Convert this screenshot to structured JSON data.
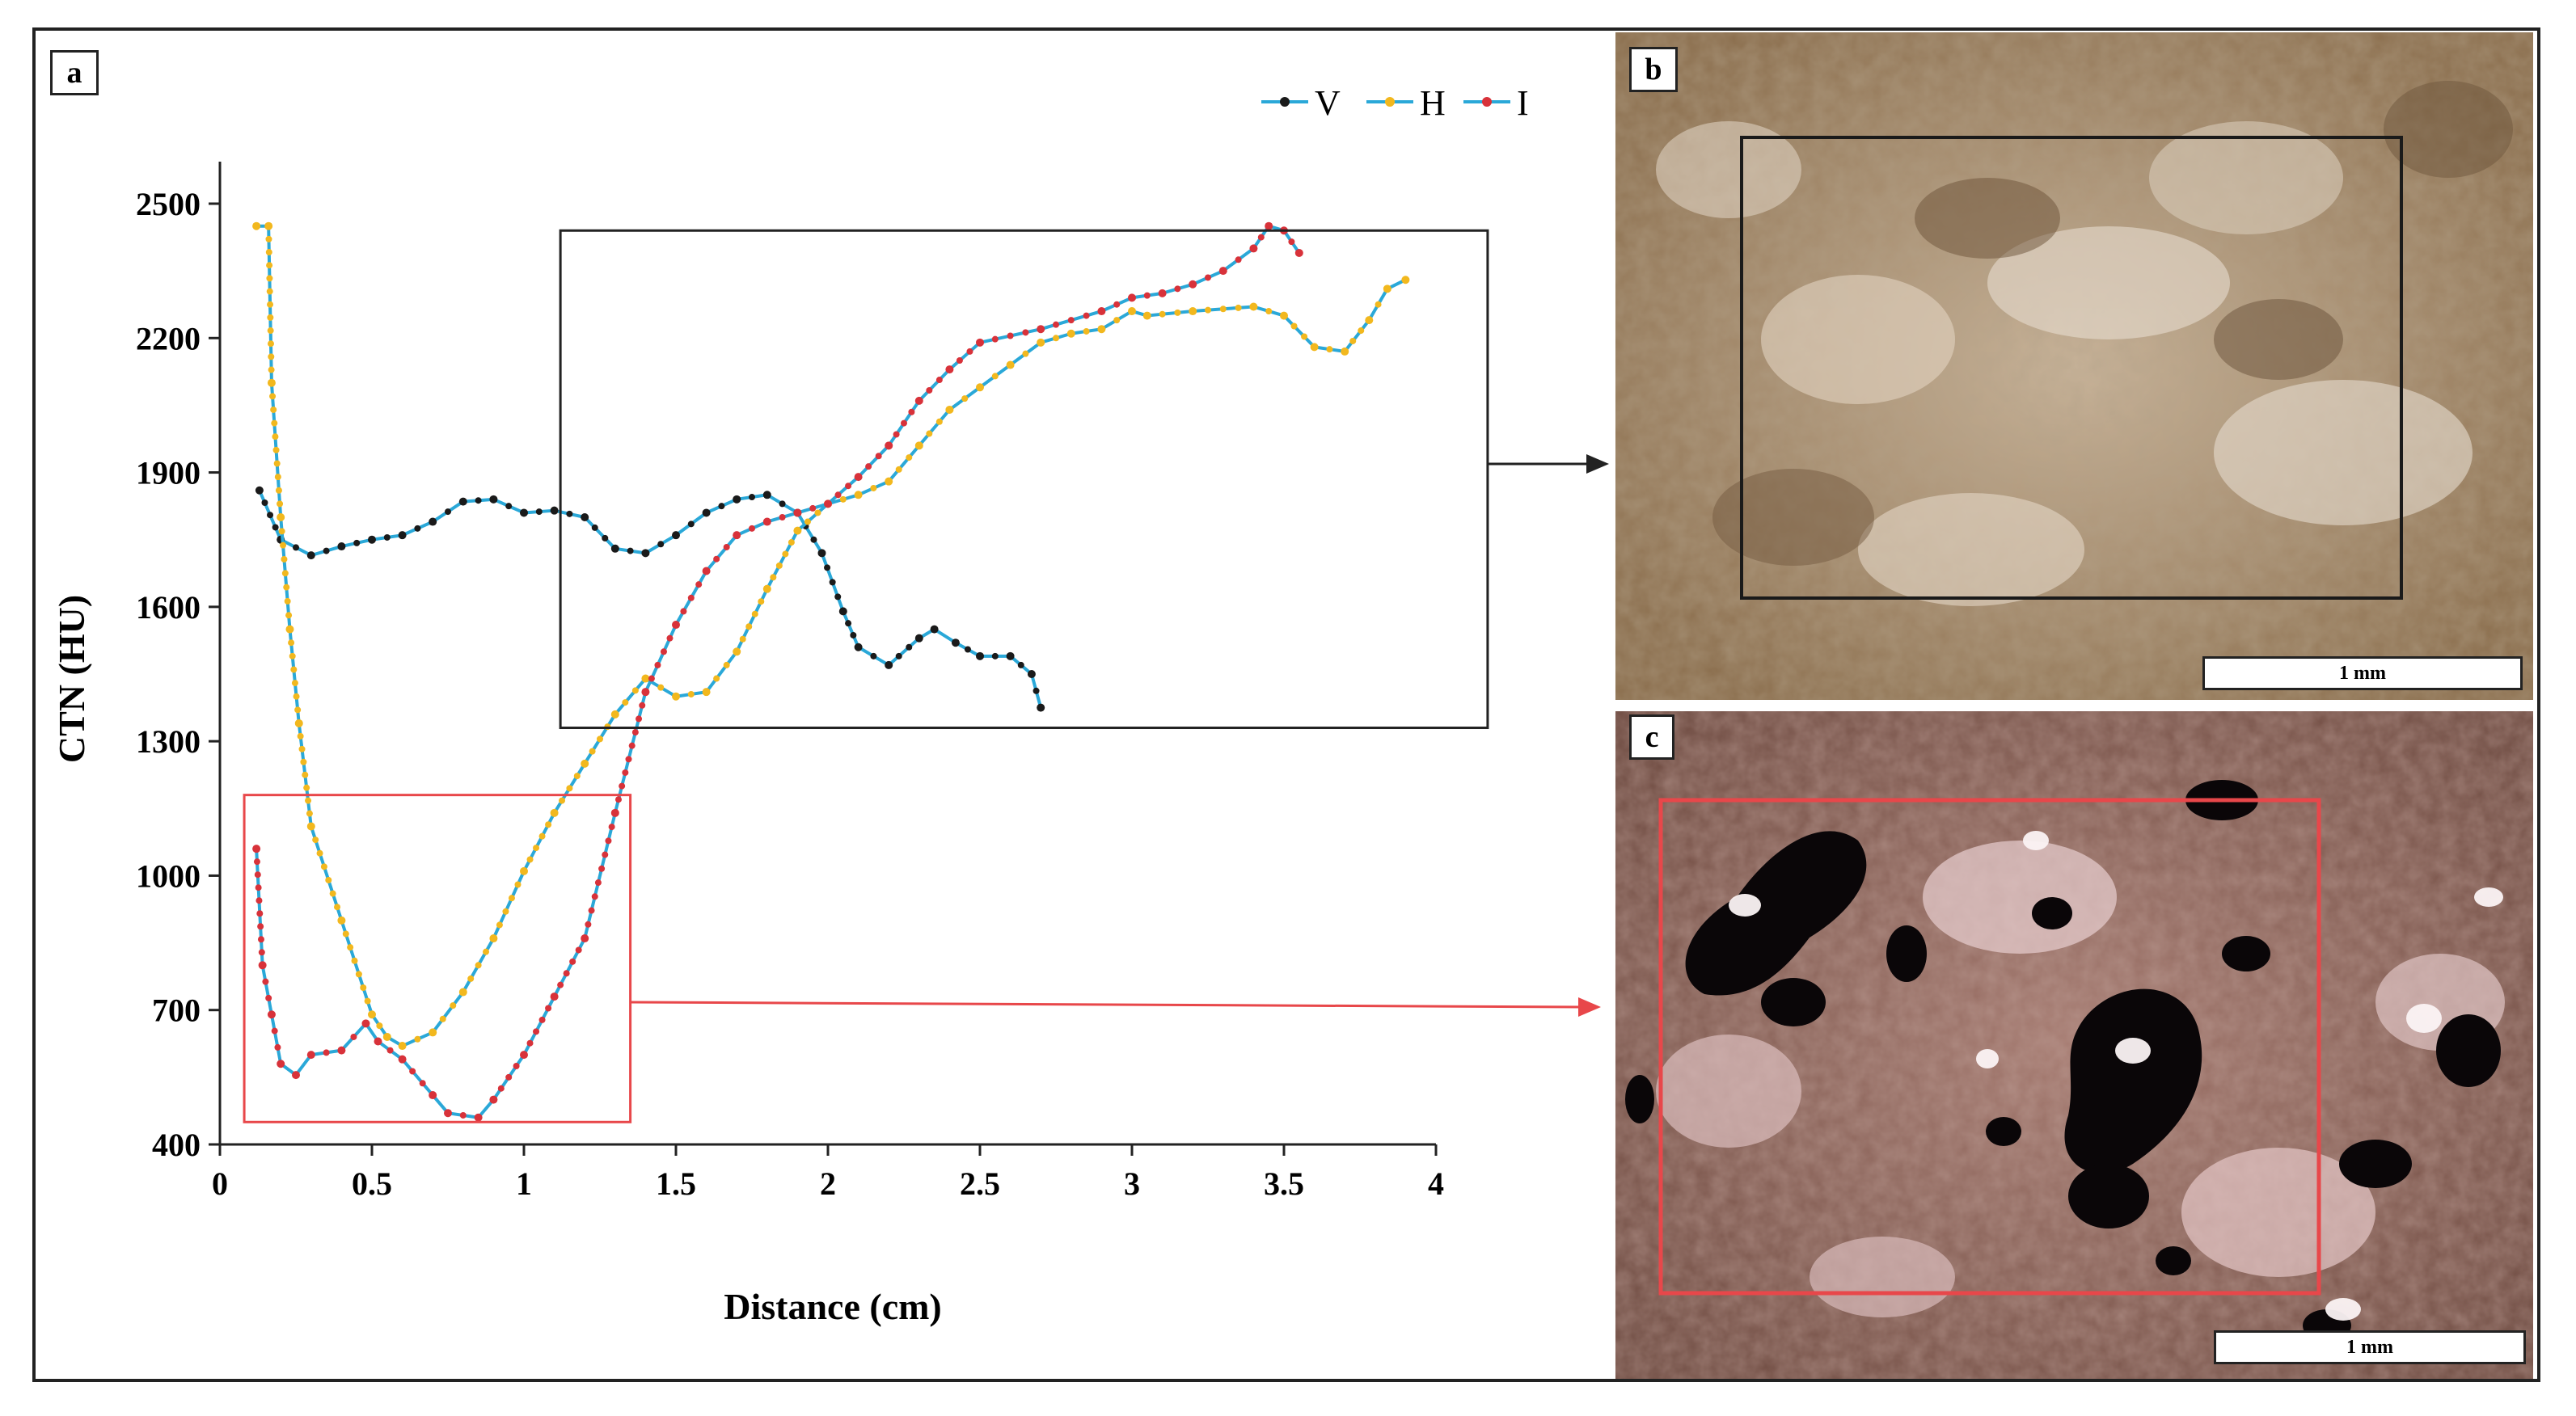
{
  "panels": {
    "a": "a",
    "b": "b",
    "c": "c"
  },
  "scalebars": {
    "b": "1 mm",
    "c": "1 mm"
  },
  "colors": {
    "line": "#2aa8d8",
    "V_marker": "#1a1a1a",
    "H_marker": "#f2b81e",
    "I_marker": "#d8323a",
    "inset_black": "#222222",
    "inset_red": "#e8474a"
  },
  "chart_data": {
    "type": "line",
    "title": "",
    "xlabel": "Distance (cm)",
    "ylabel": "CTN (HU)",
    "xlim": [
      0,
      4
    ],
    "ylim": [
      400,
      2600
    ],
    "xticks": [
      0,
      0.5,
      1,
      1.5,
      2,
      2.5,
      3,
      3.5,
      4
    ],
    "xtick_labels": [
      "0",
      "0.5",
      "1",
      "1.5",
      "2",
      "2.5",
      "3",
      "3.5",
      "4"
    ],
    "yticks": [
      400,
      700,
      1000,
      1300,
      1600,
      1900,
      2200,
      2500
    ],
    "ytick_labels": [
      "400",
      "700",
      "1000",
      "1300",
      "1600",
      "1900",
      "2200",
      "2500"
    ],
    "legend": {
      "position": "top-right",
      "entries": [
        "V",
        "H",
        "I"
      ]
    },
    "insets": [
      {
        "name": "black-box",
        "x_range": [
          1.12,
          4.17
        ],
        "y_range": [
          1330,
          2440
        ],
        "points_to": "b"
      },
      {
        "name": "red-box",
        "x_range": [
          0.08,
          1.35
        ],
        "y_range": [
          450,
          1180
        ],
        "points_to": "c"
      }
    ],
    "series": [
      {
        "name": "V",
        "points": [
          [
            0.13,
            1860
          ],
          [
            0.2,
            1750
          ],
          [
            0.3,
            1715
          ],
          [
            0.4,
            1735
          ],
          [
            0.5,
            1750
          ],
          [
            0.6,
            1760
          ],
          [
            0.7,
            1790
          ],
          [
            0.8,
            1835
          ],
          [
            0.9,
            1840
          ],
          [
            1.0,
            1810
          ],
          [
            1.1,
            1815
          ],
          [
            1.2,
            1800
          ],
          [
            1.3,
            1730
          ],
          [
            1.4,
            1720
          ],
          [
            1.5,
            1760
          ],
          [
            1.6,
            1810
          ],
          [
            1.7,
            1840
          ],
          [
            1.8,
            1850
          ],
          [
            1.9,
            1810
          ],
          [
            1.98,
            1720
          ],
          [
            2.05,
            1590
          ],
          [
            2.1,
            1510
          ],
          [
            2.2,
            1470
          ],
          [
            2.3,
            1530
          ],
          [
            2.35,
            1550
          ],
          [
            2.42,
            1520
          ],
          [
            2.5,
            1490
          ],
          [
            2.6,
            1490
          ],
          [
            2.67,
            1450
          ],
          [
            2.7,
            1375
          ]
        ]
      },
      {
        "name": "H",
        "points": [
          [
            0.12,
            2450
          ],
          [
            0.16,
            2450
          ],
          [
            0.17,
            2100
          ],
          [
            0.2,
            1800
          ],
          [
            0.23,
            1550
          ],
          [
            0.26,
            1340
          ],
          [
            0.3,
            1110
          ],
          [
            0.4,
            900
          ],
          [
            0.5,
            690
          ],
          [
            0.55,
            640
          ],
          [
            0.6,
            620
          ],
          [
            0.7,
            650
          ],
          [
            0.8,
            740
          ],
          [
            0.9,
            860
          ],
          [
            1.0,
            1010
          ],
          [
            1.1,
            1140
          ],
          [
            1.2,
            1250
          ],
          [
            1.3,
            1360
          ],
          [
            1.4,
            1440
          ],
          [
            1.5,
            1400
          ],
          [
            1.6,
            1410
          ],
          [
            1.7,
            1500
          ],
          [
            1.8,
            1640
          ],
          [
            1.9,
            1770
          ],
          [
            2.0,
            1830
          ],
          [
            2.1,
            1850
          ],
          [
            2.2,
            1880
          ],
          [
            2.3,
            1960
          ],
          [
            2.4,
            2040
          ],
          [
            2.5,
            2090
          ],
          [
            2.6,
            2140
          ],
          [
            2.7,
            2190
          ],
          [
            2.8,
            2210
          ],
          [
            2.9,
            2220
          ],
          [
            3.0,
            2260
          ],
          [
            3.05,
            2250
          ],
          [
            3.2,
            2260
          ],
          [
            3.4,
            2270
          ],
          [
            3.5,
            2250
          ],
          [
            3.6,
            2180
          ],
          [
            3.7,
            2170
          ],
          [
            3.78,
            2240
          ],
          [
            3.84,
            2310
          ],
          [
            3.9,
            2330
          ]
        ]
      },
      {
        "name": "I",
        "points": [
          [
            0.12,
            1060
          ],
          [
            0.14,
            800
          ],
          [
            0.17,
            690
          ],
          [
            0.2,
            580
          ],
          [
            0.25,
            555
          ],
          [
            0.3,
            600
          ],
          [
            0.4,
            610
          ],
          [
            0.48,
            670
          ],
          [
            0.52,
            630
          ],
          [
            0.6,
            590
          ],
          [
            0.7,
            510
          ],
          [
            0.75,
            470
          ],
          [
            0.85,
            460
          ],
          [
            0.9,
            500
          ],
          [
            1.0,
            600
          ],
          [
            1.1,
            730
          ],
          [
            1.2,
            860
          ],
          [
            1.3,
            1140
          ],
          [
            1.4,
            1410
          ],
          [
            1.5,
            1560
          ],
          [
            1.6,
            1680
          ],
          [
            1.7,
            1760
          ],
          [
            1.8,
            1790
          ],
          [
            1.9,
            1810
          ],
          [
            2.0,
            1830
          ],
          [
            2.1,
            1890
          ],
          [
            2.2,
            1960
          ],
          [
            2.3,
            2060
          ],
          [
            2.4,
            2130
          ],
          [
            2.5,
            2190
          ],
          [
            2.7,
            2220
          ],
          [
            2.9,
            2260
          ],
          [
            3.0,
            2290
          ],
          [
            3.1,
            2300
          ],
          [
            3.2,
            2320
          ],
          [
            3.3,
            2350
          ],
          [
            3.4,
            2400
          ],
          [
            3.45,
            2450
          ],
          [
            3.5,
            2440
          ],
          [
            3.55,
            2390
          ]
        ]
      }
    ]
  }
}
